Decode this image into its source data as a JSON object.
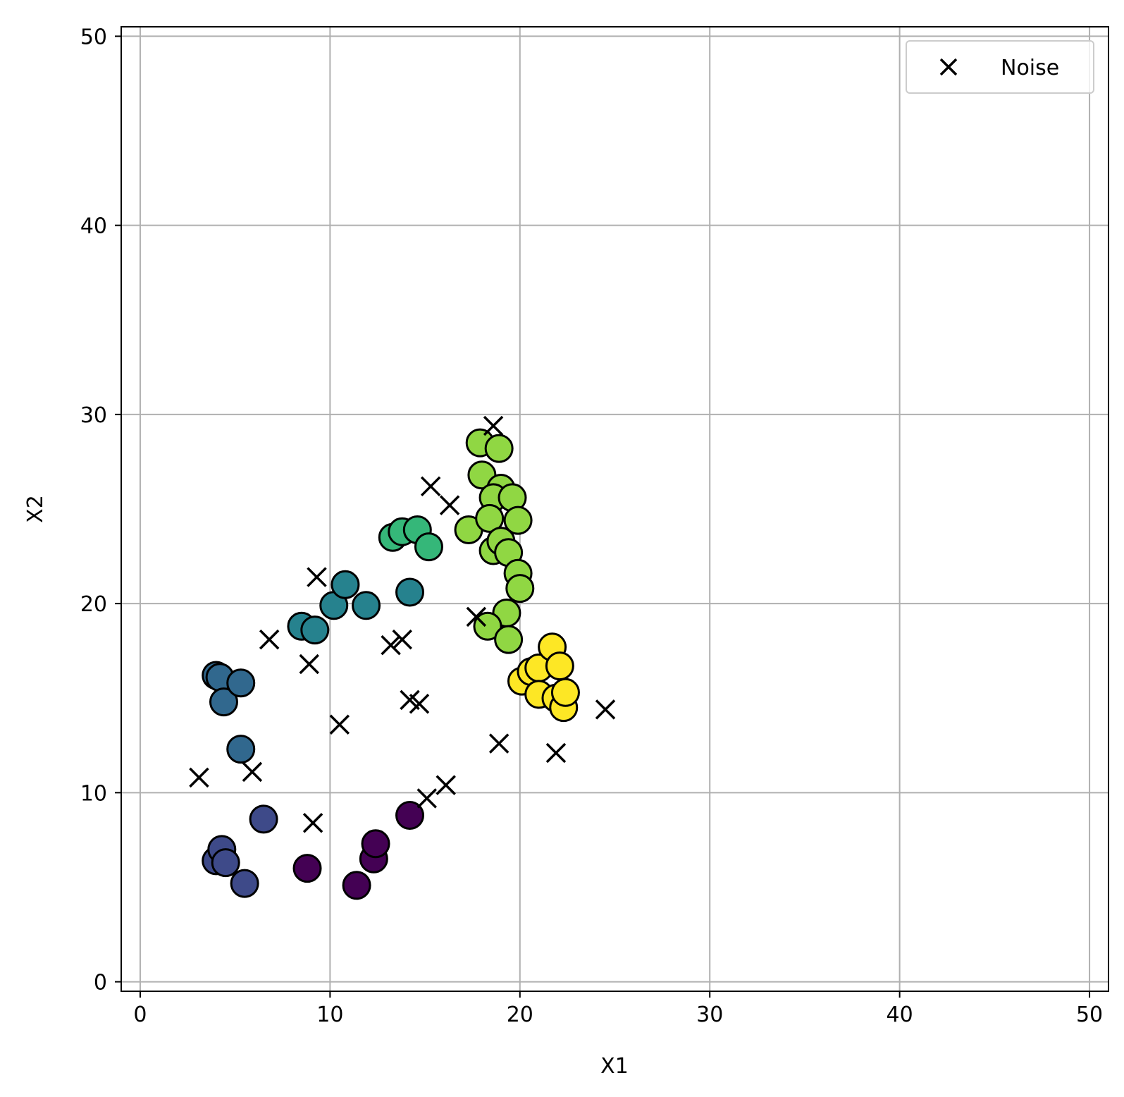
{
  "chart_data": {
    "type": "scatter",
    "title": "",
    "xlabel": "X1",
    "ylabel": "X2",
    "xlim": [
      -1,
      51
    ],
    "ylim": [
      -0.5,
      50.5
    ],
    "xticks": [
      "0",
      "10",
      "20",
      "30",
      "40",
      "50"
    ],
    "yticks": [
      "0",
      "10",
      "20",
      "30",
      "40",
      "50"
    ],
    "grid": true,
    "legend": {
      "position": "top-right",
      "entries": [
        "Noise"
      ]
    },
    "clusters": [
      {
        "color": "#440154",
        "points": [
          [
            8.8,
            6.0
          ],
          [
            11.4,
            5.1
          ],
          [
            12.3,
            6.5
          ],
          [
            12.4,
            7.3
          ],
          [
            14.2,
            8.8
          ]
        ]
      },
      {
        "color": "#3e4a89",
        "points": [
          [
            4.0,
            6.4
          ],
          [
            4.3,
            7.0
          ],
          [
            4.5,
            6.3
          ],
          [
            5.5,
            5.2
          ],
          [
            6.5,
            8.6
          ]
        ]
      },
      {
        "color": "#31688e",
        "points": [
          [
            4.0,
            16.2
          ],
          [
            4.2,
            16.1
          ],
          [
            4.4,
            14.8
          ],
          [
            5.3,
            15.8
          ],
          [
            5.3,
            12.3
          ]
        ]
      },
      {
        "color": "#26828e",
        "points": [
          [
            8.5,
            18.8
          ],
          [
            9.2,
            18.6
          ],
          [
            10.2,
            19.9
          ],
          [
            10.8,
            21.0
          ],
          [
            11.9,
            19.9
          ],
          [
            14.2,
            20.6
          ]
        ]
      },
      {
        "color": "#35b779",
        "points": [
          [
            13.3,
            23.5
          ],
          [
            13.8,
            23.8
          ],
          [
            14.6,
            23.9
          ],
          [
            15.2,
            23.0
          ]
        ]
      },
      {
        "color": "#90d743",
        "points": [
          [
            17.9,
            28.5
          ],
          [
            18.9,
            28.2
          ],
          [
            18.0,
            26.8
          ],
          [
            19.0,
            26.1
          ],
          [
            18.6,
            25.6
          ],
          [
            19.6,
            25.6
          ],
          [
            17.3,
            23.9
          ],
          [
            18.4,
            24.5
          ],
          [
            19.9,
            24.4
          ],
          [
            18.6,
            22.8
          ],
          [
            19.0,
            23.3
          ],
          [
            19.4,
            22.7
          ],
          [
            19.9,
            21.6
          ],
          [
            20.0,
            20.8
          ],
          [
            19.3,
            19.5
          ],
          [
            18.3,
            18.8
          ],
          [
            19.4,
            18.1
          ]
        ]
      },
      {
        "color": "#fde725",
        "points": [
          [
            20.1,
            15.9
          ],
          [
            20.6,
            16.4
          ],
          [
            21.0,
            16.6
          ],
          [
            21.7,
            17.7
          ],
          [
            22.1,
            16.7
          ],
          [
            21.0,
            15.2
          ],
          [
            21.9,
            15.0
          ],
          [
            22.3,
            14.5
          ],
          [
            22.4,
            15.3
          ]
        ]
      }
    ],
    "noise": {
      "color": "#000000",
      "label": "Noise",
      "points": [
        [
          3.1,
          10.8
        ],
        [
          5.9,
          11.1
        ],
        [
          6.8,
          18.1
        ],
        [
          8.9,
          16.8
        ],
        [
          9.3,
          21.4
        ],
        [
          9.1,
          8.4
        ],
        [
          10.5,
          13.6
        ],
        [
          13.2,
          17.8
        ],
        [
          13.8,
          18.1
        ],
        [
          14.2,
          14.9
        ],
        [
          14.7,
          14.7
        ],
        [
          15.3,
          26.2
        ],
        [
          16.3,
          25.2
        ],
        [
          15.1,
          9.7
        ],
        [
          16.1,
          10.4
        ],
        [
          17.7,
          19.3
        ],
        [
          18.6,
          29.4
        ],
        [
          18.9,
          12.6
        ],
        [
          21.9,
          12.1
        ],
        [
          24.5,
          14.4
        ]
      ]
    }
  }
}
